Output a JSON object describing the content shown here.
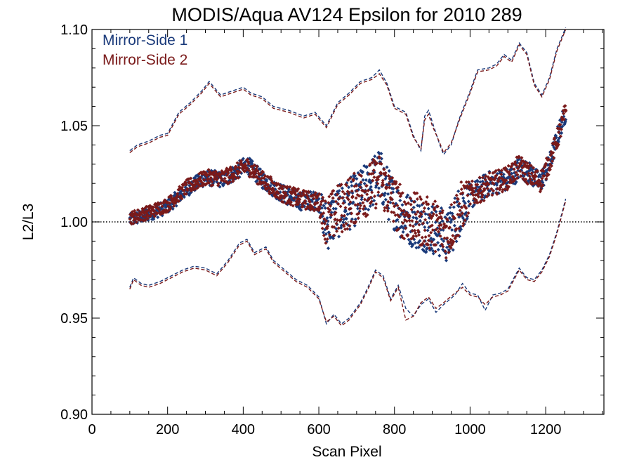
{
  "chart_data": {
    "type": "scatter",
    "title": "MODIS/Aqua AV124 Epsilon for 2010 289",
    "xlabel": "Scan Pixel",
    "ylabel": "L2/L3",
    "xlim": [
      0,
      1354
    ],
    "ylim": [
      0.9,
      1.1
    ],
    "x_ticks": [
      "0",
      "200",
      "400",
      "600",
      "800",
      "1000",
      "1200"
    ],
    "y_ticks": [
      "0.90",
      "0.95",
      "1.00",
      "1.05",
      "1.10"
    ],
    "reference_line": {
      "y": 1.0,
      "style": "dotted"
    },
    "legend_position": "top-left",
    "series": [
      {
        "name": "Mirror-Side 1",
        "color": "#1a3a7a",
        "kind": "points",
        "anchors": [
          [
            100,
            1.001
          ],
          [
            150,
            1.004
          ],
          [
            200,
            1.008
          ],
          [
            250,
            1.017
          ],
          [
            300,
            1.023
          ],
          [
            350,
            1.022
          ],
          [
            410,
            1.03
          ],
          [
            450,
            1.022
          ],
          [
            500,
            1.015
          ],
          [
            550,
            1.011
          ],
          [
            600,
            1.011
          ],
          [
            620,
            0.998
          ],
          [
            650,
            1.005
          ],
          [
            700,
            1.012
          ],
          [
            730,
            1.018
          ],
          [
            760,
            1.025
          ],
          [
            790,
            1.012
          ],
          [
            820,
            1.004
          ],
          [
            850,
            1.0
          ],
          [
            880,
            0.998
          ],
          [
            910,
            0.996
          ],
          [
            940,
            0.992
          ],
          [
            970,
            1.005
          ],
          [
            1000,
            1.013
          ],
          [
            1050,
            1.02
          ],
          [
            1100,
            1.022
          ],
          [
            1130,
            1.028
          ],
          [
            1160,
            1.025
          ],
          [
            1185,
            1.02
          ],
          [
            1210,
            1.03
          ],
          [
            1240,
            1.05
          ],
          [
            1253,
            1.057
          ]
        ],
        "spread": [
          [
            100,
            0.002
          ],
          [
            600,
            0.003
          ],
          [
            620,
            0.008
          ],
          [
            980,
            0.008
          ],
          [
            1000,
            0.004
          ],
          [
            1253,
            0.003
          ]
        ]
      },
      {
        "name": "Mirror-Side 2",
        "color": "#7a1a1a",
        "kind": "points",
        "anchors": [
          [
            100,
            1.002
          ],
          [
            150,
            1.005
          ],
          [
            200,
            1.009
          ],
          [
            250,
            1.018
          ],
          [
            300,
            1.023
          ],
          [
            350,
            1.023
          ],
          [
            410,
            1.029
          ],
          [
            450,
            1.022
          ],
          [
            500,
            1.015
          ],
          [
            550,
            1.012
          ],
          [
            600,
            1.01
          ],
          [
            620,
            1.0
          ],
          [
            650,
            1.006
          ],
          [
            700,
            1.013
          ],
          [
            730,
            1.017
          ],
          [
            760,
            1.022
          ],
          [
            790,
            1.013
          ],
          [
            820,
            1.005
          ],
          [
            850,
            1.002
          ],
          [
            880,
            1.0
          ],
          [
            910,
            0.998
          ],
          [
            940,
            0.994
          ],
          [
            970,
            1.006
          ],
          [
            1000,
            1.014
          ],
          [
            1050,
            1.019
          ],
          [
            1100,
            1.023
          ],
          [
            1130,
            1.029
          ],
          [
            1160,
            1.024
          ],
          [
            1185,
            1.021
          ],
          [
            1210,
            1.031
          ],
          [
            1240,
            1.049
          ],
          [
            1253,
            1.058
          ]
        ],
        "spread": [
          [
            100,
            0.002
          ],
          [
            600,
            0.003
          ],
          [
            620,
            0.008
          ],
          [
            980,
            0.008
          ],
          [
            1000,
            0.004
          ],
          [
            1253,
            0.003
          ]
        ]
      },
      {
        "name": "Mirror-Side 1 upper bound",
        "color": "#1a3a7a",
        "kind": "dashed",
        "points": [
          [
            100,
            1.037
          ],
          [
            120,
            1.04
          ],
          [
            150,
            1.042
          ],
          [
            180,
            1.045
          ],
          [
            200,
            1.046
          ],
          [
            230,
            1.057
          ],
          [
            260,
            1.062
          ],
          [
            290,
            1.068
          ],
          [
            310,
            1.073
          ],
          [
            340,
            1.066
          ],
          [
            370,
            1.068
          ],
          [
            400,
            1.07
          ],
          [
            420,
            1.067
          ],
          [
            450,
            1.065
          ],
          [
            480,
            1.06
          ],
          [
            520,
            1.058
          ],
          [
            560,
            1.055
          ],
          [
            590,
            1.057
          ],
          [
            620,
            1.05
          ],
          [
            650,
            1.062
          ],
          [
            680,
            1.067
          ],
          [
            710,
            1.073
          ],
          [
            740,
            1.075
          ],
          [
            760,
            1.079
          ],
          [
            780,
            1.072
          ],
          [
            800,
            1.06
          ],
          [
            830,
            1.057
          ],
          [
            850,
            1.045
          ],
          [
            870,
            1.037
          ],
          [
            880,
            1.055
          ],
          [
            890,
            1.058
          ],
          [
            900,
            1.052
          ],
          [
            920,
            1.04
          ],
          [
            930,
            1.035
          ],
          [
            950,
            1.04
          ],
          [
            970,
            1.053
          ],
          [
            1000,
            1.068
          ],
          [
            1020,
            1.079
          ],
          [
            1050,
            1.08
          ],
          [
            1070,
            1.082
          ],
          [
            1090,
            1.087
          ],
          [
            1110,
            1.084
          ],
          [
            1130,
            1.093
          ],
          [
            1150,
            1.088
          ],
          [
            1170,
            1.072
          ],
          [
            1190,
            1.066
          ],
          [
            1210,
            1.075
          ],
          [
            1230,
            1.09
          ],
          [
            1253,
            1.101
          ]
        ]
      },
      {
        "name": "Mirror-Side 2 upper bound",
        "color": "#7a1a1a",
        "kind": "dashed",
        "points": [
          [
            100,
            1.036
          ],
          [
            120,
            1.039
          ],
          [
            150,
            1.041
          ],
          [
            180,
            1.044
          ],
          [
            200,
            1.045
          ],
          [
            230,
            1.056
          ],
          [
            260,
            1.061
          ],
          [
            290,
            1.067
          ],
          [
            310,
            1.072
          ],
          [
            340,
            1.065
          ],
          [
            370,
            1.067
          ],
          [
            400,
            1.069
          ],
          [
            420,
            1.066
          ],
          [
            450,
            1.064
          ],
          [
            480,
            1.059
          ],
          [
            520,
            1.057
          ],
          [
            560,
            1.054
          ],
          [
            590,
            1.056
          ],
          [
            620,
            1.049
          ],
          [
            650,
            1.061
          ],
          [
            680,
            1.066
          ],
          [
            710,
            1.072
          ],
          [
            740,
            1.074
          ],
          [
            760,
            1.077
          ],
          [
            780,
            1.071
          ],
          [
            800,
            1.059
          ],
          [
            830,
            1.056
          ],
          [
            850,
            1.044
          ],
          [
            870,
            1.038
          ],
          [
            880,
            1.053
          ],
          [
            890,
            1.056
          ],
          [
            900,
            1.05
          ],
          [
            920,
            1.041
          ],
          [
            930,
            1.036
          ],
          [
            950,
            1.041
          ],
          [
            970,
            1.052
          ],
          [
            1000,
            1.067
          ],
          [
            1020,
            1.078
          ],
          [
            1050,
            1.079
          ],
          [
            1070,
            1.081
          ],
          [
            1090,
            1.086
          ],
          [
            1110,
            1.083
          ],
          [
            1130,
            1.092
          ],
          [
            1150,
            1.087
          ],
          [
            1170,
            1.071
          ],
          [
            1190,
            1.065
          ],
          [
            1210,
            1.074
          ],
          [
            1230,
            1.089
          ],
          [
            1253,
            1.1
          ]
        ]
      },
      {
        "name": "Mirror-Side 1 lower bound",
        "color": "#1a3a7a",
        "kind": "dashed",
        "points": [
          [
            100,
            0.966
          ],
          [
            110,
            0.971
          ],
          [
            130,
            0.968
          ],
          [
            150,
            0.967
          ],
          [
            180,
            0.969
          ],
          [
            210,
            0.972
          ],
          [
            240,
            0.975
          ],
          [
            270,
            0.977
          ],
          [
            300,
            0.976
          ],
          [
            330,
            0.973
          ],
          [
            360,
            0.98
          ],
          [
            390,
            0.989
          ],
          [
            410,
            0.991
          ],
          [
            430,
            0.984
          ],
          [
            460,
            0.987
          ],
          [
            480,
            0.98
          ],
          [
            510,
            0.975
          ],
          [
            540,
            0.97
          ],
          [
            570,
            0.967
          ],
          [
            600,
            0.961
          ],
          [
            620,
            0.947
          ],
          [
            640,
            0.952
          ],
          [
            660,
            0.947
          ],
          [
            680,
            0.95
          ],
          [
            710,
            0.958
          ],
          [
            730,
            0.966
          ],
          [
            750,
            0.975
          ],
          [
            770,
            0.972
          ],
          [
            790,
            0.96
          ],
          [
            810,
            0.967
          ],
          [
            830,
            0.955
          ],
          [
            850,
            0.951
          ],
          [
            870,
            0.957
          ],
          [
            890,
            0.96
          ],
          [
            910,
            0.953
          ],
          [
            930,
            0.957
          ],
          [
            960,
            0.962
          ],
          [
            980,
            0.968
          ],
          [
            1000,
            0.963
          ],
          [
            1020,
            0.962
          ],
          [
            1040,
            0.954
          ],
          [
            1060,
            0.962
          ],
          [
            1080,
            0.963
          ],
          [
            1100,
            0.965
          ],
          [
            1130,
            0.976
          ],
          [
            1150,
            0.971
          ],
          [
            1170,
            0.97
          ],
          [
            1190,
            0.975
          ],
          [
            1210,
            0.983
          ],
          [
            1230,
            0.995
          ],
          [
            1253,
            1.012
          ]
        ]
      },
      {
        "name": "Mirror-Side 2 lower bound",
        "color": "#7a1a1a",
        "kind": "dashed",
        "points": [
          [
            100,
            0.965
          ],
          [
            110,
            0.97
          ],
          [
            130,
            0.967
          ],
          [
            150,
            0.966
          ],
          [
            180,
            0.968
          ],
          [
            210,
            0.971
          ],
          [
            240,
            0.974
          ],
          [
            270,
            0.976
          ],
          [
            300,
            0.975
          ],
          [
            330,
            0.972
          ],
          [
            360,
            0.979
          ],
          [
            390,
            0.988
          ],
          [
            410,
            0.99
          ],
          [
            430,
            0.983
          ],
          [
            460,
            0.986
          ],
          [
            480,
            0.979
          ],
          [
            510,
            0.974
          ],
          [
            540,
            0.969
          ],
          [
            570,
            0.966
          ],
          [
            600,
            0.96
          ],
          [
            620,
            0.948
          ],
          [
            640,
            0.951
          ],
          [
            660,
            0.946
          ],
          [
            680,
            0.949
          ],
          [
            710,
            0.957
          ],
          [
            730,
            0.965
          ],
          [
            750,
            0.974
          ],
          [
            770,
            0.971
          ],
          [
            790,
            0.959
          ],
          [
            810,
            0.966
          ],
          [
            830,
            0.949
          ],
          [
            850,
            0.951
          ],
          [
            870,
            0.958
          ],
          [
            890,
            0.961
          ],
          [
            910,
            0.955
          ],
          [
            930,
            0.958
          ],
          [
            960,
            0.963
          ],
          [
            980,
            0.966
          ],
          [
            1000,
            0.962
          ],
          [
            1020,
            0.961
          ],
          [
            1040,
            0.957
          ],
          [
            1060,
            0.961
          ],
          [
            1080,
            0.962
          ],
          [
            1100,
            0.964
          ],
          [
            1130,
            0.975
          ],
          [
            1150,
            0.97
          ],
          [
            1170,
            0.969
          ],
          [
            1190,
            0.974
          ],
          [
            1210,
            0.982
          ],
          [
            1230,
            0.994
          ],
          [
            1253,
            1.011
          ]
        ]
      }
    ]
  }
}
